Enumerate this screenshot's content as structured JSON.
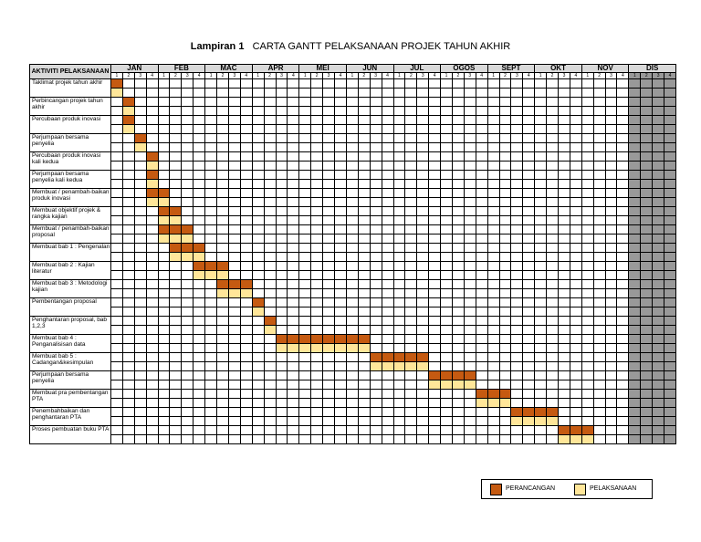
{
  "title": {
    "prefix": "Lampiran 1",
    "text": "CARTA GANTT PELAKSANAAN PROJEK TAHUN AKHIR"
  },
  "header": {
    "activity_label": "AKTIVITI PELAKSANAAN"
  },
  "months": [
    "JAN",
    "FEB",
    "MAC",
    "APR",
    "MEI",
    "JUN",
    "JUL",
    "OGOS",
    "SEPT",
    "OKT",
    "NOV",
    "DIS"
  ],
  "weeks": [
    "1",
    "2",
    "3",
    "4"
  ],
  "colors": {
    "perancangan": "#c55a11",
    "pelaksanaan": "#ffe699",
    "dis_shade": "#999999",
    "header": "#d9d9d9"
  },
  "activities": [
    {
      "label": "Taklimat projek tahun akhir",
      "plan": [
        0,
        1
      ],
      "exec": [
        0,
        1
      ]
    },
    {
      "label": "Perbincangan projek tahun akhir",
      "plan": [
        1,
        2
      ],
      "exec": [
        1,
        2
      ]
    },
    {
      "label": "Percubaan produk inovasi",
      "plan": [
        1,
        2
      ],
      "exec": [
        1,
        2
      ]
    },
    {
      "label": "Perjumpaan bersama penyelia",
      "plan": [
        2,
        3
      ],
      "exec": [
        2,
        3
      ]
    },
    {
      "label": "Percubaan produk inovasi kali kedua",
      "plan": [
        3,
        4
      ],
      "exec": [
        3,
        4
      ]
    },
    {
      "label": "Perjumpaan bersama penyelia kali kedua",
      "plan": [
        3,
        4
      ],
      "exec": [
        3,
        4
      ]
    },
    {
      "label": "Membuat / penambah-baikan produk inovasi",
      "plan": [
        3,
        5
      ],
      "exec": [
        3,
        5
      ]
    },
    {
      "label": "Membuat objektif projek & rangka kajian",
      "plan": [
        4,
        6
      ],
      "exec": [
        4,
        6
      ]
    },
    {
      "label": "Membuat / penambah-baikan proposal",
      "plan": [
        4,
        7
      ],
      "exec": [
        4,
        7
      ]
    },
    {
      "label": "Membuat bab 1 : Pengenalan",
      "plan": [
        5,
        8
      ],
      "exec": [
        5,
        8
      ]
    },
    {
      "label": "Membuat bab 2 : Kajian literatur",
      "plan": [
        7,
        10
      ],
      "exec": [
        7,
        10
      ]
    },
    {
      "label": "Membuat bab 3 : Metodologi kajian",
      "plan": [
        9,
        12
      ],
      "exec": [
        9,
        12
      ]
    },
    {
      "label": "Pembentangan proposal",
      "plan": [
        12,
        13
      ],
      "exec": [
        12,
        13
      ]
    },
    {
      "label": "Penghantaran proposal, bab 1,2,3",
      "plan": [
        13,
        14
      ],
      "exec": [
        13,
        14
      ]
    },
    {
      "label": "Membuat bab 4 : Penganalisisan data",
      "plan": [
        14,
        22
      ],
      "exec": [
        14,
        22
      ]
    },
    {
      "label": "Membuat bab 5 : Cadangan&kesimpulan",
      "plan": [
        22,
        27
      ],
      "exec": [
        22,
        27
      ]
    },
    {
      "label": "Perjumpaan bersama penyelia",
      "plan": [
        27,
        31
      ],
      "exec": [
        27,
        31
      ]
    },
    {
      "label": "Membuat pra pembentangan PTA",
      "plan": [
        31,
        34
      ],
      "exec": [
        31,
        34
      ]
    },
    {
      "label": "Penembahbaikan dan penghantaran PTA",
      "plan": [
        34,
        38
      ],
      "exec": [
        34,
        38
      ]
    },
    {
      "label": "Proses pembuatan buku PTA",
      "plan": [
        38,
        41
      ],
      "exec": [
        38,
        41
      ]
    }
  ],
  "legend": {
    "plan_label": "PERANCANGAN",
    "exec_label": "PELAKSANAAN"
  }
}
